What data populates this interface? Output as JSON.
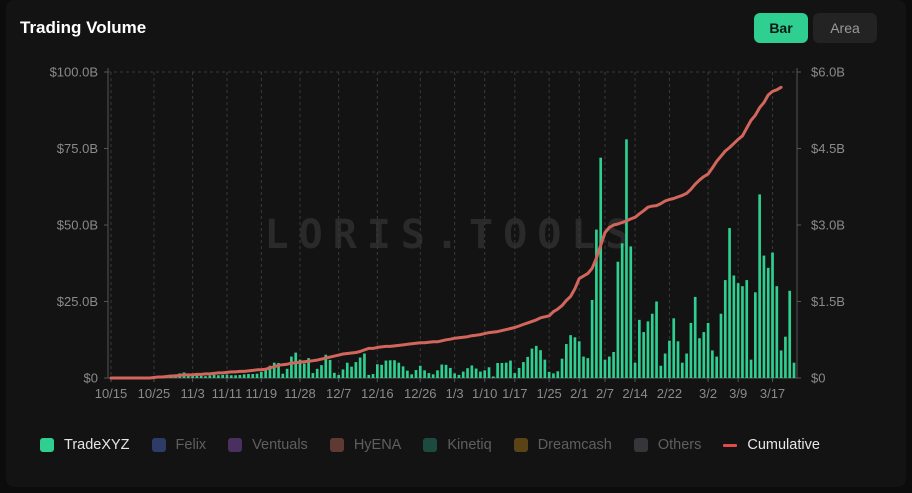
{
  "header": {
    "title": "Trading Volume"
  },
  "toggle": {
    "bar_label": "Bar",
    "area_label": "Area",
    "selected": "Bar"
  },
  "watermark": "LORIS.TOOLS",
  "colors": {
    "bar": "#2ecf91",
    "cumulative": "#d2665c",
    "grid": "#3a3a3a",
    "axis_text": "#8a8a8a"
  },
  "legend": [
    {
      "label": "TradeXYZ",
      "color": "#2ecf91",
      "active": true,
      "kind": "box"
    },
    {
      "label": "Felix",
      "color": "#2c3c66",
      "active": false,
      "kind": "box"
    },
    {
      "label": "Ventuals",
      "color": "#4a3060",
      "active": false,
      "kind": "box"
    },
    {
      "label": "HyENA",
      "color": "#5e3a33",
      "active": false,
      "kind": "box"
    },
    {
      "label": "Kinetiq",
      "color": "#1d4a3f",
      "active": false,
      "kind": "box"
    },
    {
      "label": "Dreamcash",
      "color": "#5a4415",
      "active": false,
      "kind": "box"
    },
    {
      "label": "Others",
      "color": "#35353a",
      "active": false,
      "kind": "box"
    },
    {
      "label": "Cumulative",
      "color": "#e24b4b",
      "active": true,
      "kind": "line"
    }
  ],
  "chart_data": {
    "type": "bar",
    "title": "Trading Volume",
    "x_tick_labels": [
      "10/15",
      "10/25",
      "11/3",
      "11/11",
      "11/19",
      "11/28",
      "12/7",
      "12/16",
      "12/26",
      "1/3",
      "1/10",
      "1/17",
      "1/25",
      "2/1",
      "2/7",
      "2/14",
      "2/22",
      "3/2",
      "3/9",
      "3/17"
    ],
    "x_tick_day_index": [
      0,
      10,
      19,
      27,
      35,
      44,
      53,
      62,
      72,
      80,
      87,
      94,
      102,
      109,
      115,
      122,
      130,
      139,
      146,
      154
    ],
    "y_left": {
      "ticks": [
        "$0",
        "$25.0B",
        "$50.0B",
        "$75.0B",
        "$100.0B"
      ],
      "ylim": [
        0,
        100
      ]
    },
    "y_right": {
      "ticks": [
        "$0",
        "$1.5B",
        "$3.0B",
        "$4.5B",
        "$6.0B"
      ],
      "ylim": [
        0,
        6
      ]
    },
    "grid": "vertical dashed",
    "legend_position": "bottom",
    "series": [
      {
        "name": "TradeXYZ",
        "axis": "left",
        "unit": "B",
        "values": [
          0,
          0,
          0,
          0,
          0,
          0.1,
          0.1,
          0.2,
          0.2,
          0.3,
          0.3,
          0.4,
          0.5,
          0.6,
          1,
          1.2,
          1.5,
          1.8,
          1,
          0.8,
          0.8,
          0.7,
          0.6,
          0.8,
          1,
          0.9,
          1,
          1.1,
          0.9,
          0.9,
          1,
          1.2,
          1.3,
          1.3,
          1.4,
          2,
          3,
          4,
          5,
          4.9,
          1.4,
          3,
          7,
          8.3,
          6,
          4.7,
          6.5,
          1.6,
          3,
          4.2,
          7.6,
          5.9,
          1.7,
          1,
          2.8,
          5,
          3.7,
          5.2,
          6.7,
          8,
          1,
          1.3,
          4.5,
          4.3,
          5.7,
          5.8,
          5.8,
          5,
          3.8,
          2.4,
          1.2,
          2.6,
          4,
          2.5,
          1.6,
          1.2,
          2.5,
          4.4,
          4.3,
          3.3,
          1.5,
          1,
          2.1,
          3.2,
          4.1,
          3.1,
          2.1,
          2.5,
          3.5,
          0.5,
          4.9,
          4.9,
          5,
          5.7,
          1.6,
          3.3,
          5.2,
          6.9,
          9.6,
          10.5,
          9.1,
          6,
          2,
          1.5,
          2.2,
          6.3,
          11.1,
          14,
          13.3,
          12,
          7,
          6.5,
          25.5,
          48.5,
          72,
          6,
          7,
          8.5,
          38,
          44,
          78,
          43,
          5,
          19,
          15,
          18.5,
          21,
          25,
          4,
          8,
          12.2,
          19.5,
          12,
          5,
          8,
          18,
          26.5,
          13,
          15,
          18,
          9,
          7,
          21,
          32,
          49,
          33.5,
          31,
          30,
          32,
          6,
          28,
          60,
          40,
          36,
          41,
          30,
          9,
          13.5,
          28.5,
          5
        ]
      },
      {
        "name": "Cumulative",
        "axis": "right",
        "unit": "B",
        "values": [
          0,
          0,
          0,
          0,
          0,
          0,
          0,
          0,
          0,
          0,
          0.01,
          0.02,
          0.02,
          0.03,
          0.04,
          0.04,
          0.05,
          0.06,
          0.06,
          0.06,
          0.07,
          0.07,
          0.08,
          0.08,
          0.09,
          0.1,
          0.1,
          0.11,
          0.12,
          0.12,
          0.13,
          0.13,
          0.14,
          0.15,
          0.16,
          0.16,
          0.17,
          0.2,
          0.22,
          0.25,
          0.26,
          0.27,
          0.29,
          0.3,
          0.31,
          0.32,
          0.33,
          0.34,
          0.35,
          0.37,
          0.39,
          0.41,
          0.43,
          0.45,
          0.47,
          0.48,
          0.49,
          0.5,
          0.52,
          0.55,
          0.58,
          0.58,
          0.6,
          0.61,
          0.62,
          0.62,
          0.63,
          0.64,
          0.65,
          0.66,
          0.67,
          0.68,
          0.69,
          0.69,
          0.7,
          0.71,
          0.71,
          0.73,
          0.75,
          0.76,
          0.78,
          0.79,
          0.8,
          0.81,
          0.83,
          0.84,
          0.85,
          0.87,
          0.89,
          0.9,
          0.91,
          0.93,
          0.95,
          0.97,
          0.99,
          1.02,
          1.05,
          1.08,
          1.11,
          1.14,
          1.18,
          1.2,
          1.22,
          1.3,
          1.35,
          1.42,
          1.52,
          1.6,
          1.75,
          1.95,
          2.0,
          2.05,
          2.15,
          2.35,
          2.6,
          2.85,
          2.95,
          3.0,
          3.02,
          3.05,
          3.08,
          3.12,
          3.15,
          3.22,
          3.28,
          3.35,
          3.37,
          3.38,
          3.42,
          3.47,
          3.5,
          3.52,
          3.55,
          3.58,
          3.62,
          3.7,
          3.8,
          3.88,
          3.95,
          4.0,
          4.12,
          4.25,
          4.35,
          4.45,
          4.52,
          4.6,
          4.68,
          4.75,
          4.9,
          5.05,
          5.15,
          5.3,
          5.4,
          5.55,
          5.62,
          5.65,
          5.7
        ]
      }
    ]
  }
}
